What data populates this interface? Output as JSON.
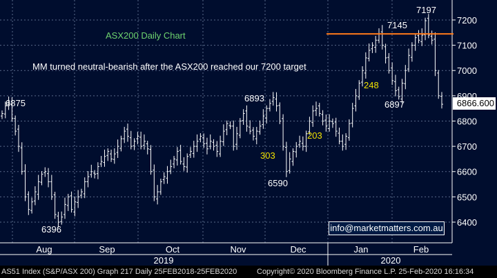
{
  "chart_data": {
    "type": "ohlc-bar",
    "title": "ASX200 Daily Chart",
    "subtitle": "MM turned neutral-bearish after the ASX200 reached our 7200 target",
    "ylim": [
      6330,
      7250
    ],
    "y_ticks": [
      6400,
      6500,
      6600,
      6700,
      6800,
      6900,
      7000,
      7100,
      7200
    ],
    "x_month_labels": [
      "Aug",
      "Sep",
      "Oct",
      "Nov",
      "Dec",
      "Jan",
      "Feb"
    ],
    "x_year_labels": [
      "2019",
      "2020"
    ],
    "last_price": "6866.600",
    "resistance_level": 7145,
    "series": [
      {
        "values": [
          6830,
          6860,
          6875,
          6810,
          6760,
          6700,
          6600,
          6500,
          6450,
          6480,
          6520,
          6560,
          6590,
          6600,
          6560,
          6500,
          6430,
          6400,
          6420,
          6470,
          6500,
          6450,
          6480,
          6500,
          6520,
          6560,
          6580,
          6600,
          6590,
          6620,
          6640,
          6660,
          6680,
          6650,
          6670,
          6700,
          6730,
          6760,
          6740,
          6700,
          6720,
          6740,
          6700,
          6720,
          6690,
          6600,
          6500,
          6520,
          6560,
          6580,
          6600,
          6620,
          6650,
          6680,
          6640,
          6620,
          6660,
          6680,
          6700,
          6720,
          6740,
          6710,
          6690,
          6720,
          6700,
          6680,
          6720,
          6760,
          6790,
          6780,
          6700,
          6750,
          6800,
          6830,
          6780,
          6760,
          6740,
          6760,
          6780,
          6820,
          6850,
          6870,
          6893,
          6860,
          6800,
          6700,
          6600,
          6650,
          6680,
          6700,
          6720,
          6700,
          6750,
          6800,
          6840,
          6850,
          6830,
          6800,
          6780,
          6800,
          6790,
          6760,
          6720,
          6700,
          6740,
          6790,
          6850,
          6900,
          6950,
          7000,
          7050,
          7080,
          7100,
          7120,
          7145,
          7100,
          7050,
          7000,
          6960,
          6920,
          6897,
          6950,
          7000,
          7060,
          7100,
          7130,
          7120,
          7140,
          7197,
          7140,
          7120,
          7000,
          6900,
          6866.6
        ]
      }
    ],
    "annotations": [
      {
        "text": "6875",
        "value": 6875
      },
      {
        "text": "6396",
        "value": 6396
      },
      {
        "text": "6893",
        "value": 6893
      },
      {
        "text": "6590",
        "value": 6590
      },
      {
        "text": "303",
        "kind": "move"
      },
      {
        "text": "203",
        "kind": "move"
      },
      {
        "text": "248",
        "kind": "move"
      },
      {
        "text": "6897",
        "value": 6897
      },
      {
        "text": "7145",
        "value": 7145
      },
      {
        "text": "7197",
        "value": 7197
      }
    ]
  },
  "watermark": "info@marketmatters.com.au",
  "footer": {
    "left": "AS51 Index (S&P/ASX 200) Graph 217  Daily 25FEB2018-25FEB2020",
    "right": "Copyright© 2020 Bloomberg Finance L.P.     25-Feb-2020 16:16:34"
  },
  "colors": {
    "background": "#000d2e",
    "grid": "#5a6a8a",
    "bars": "#ffffff",
    "resistance": "#ff7a1a",
    "title": "#6fd46f",
    "move_label": "#f2e200",
    "text": "#ffffff"
  }
}
